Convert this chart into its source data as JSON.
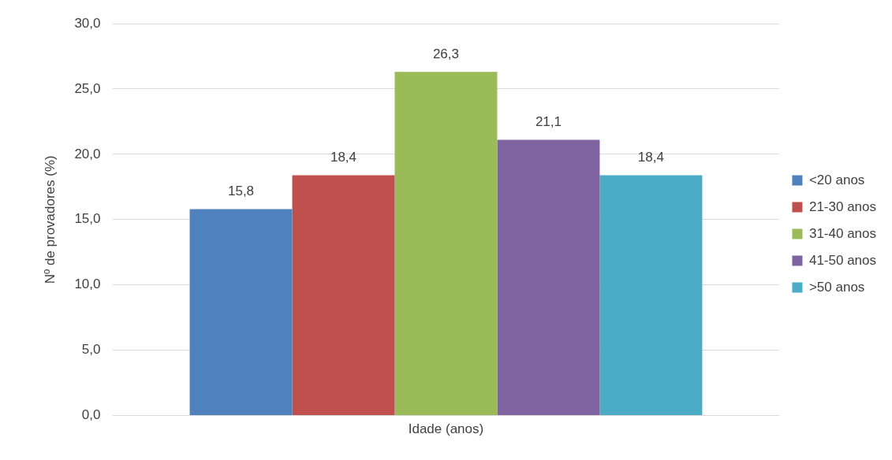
{
  "chart_data": {
    "type": "bar",
    "ylabel": "Nº de provadores (%)",
    "categories": [
      "Idade (anos)"
    ],
    "series": [
      {
        "name": "<20 anos",
        "color": "#4f81bd",
        "values": [
          15.8
        ],
        "value_labels": [
          "15,8"
        ]
      },
      {
        "name": "21-30 anos",
        "color": "#c0504d",
        "values": [
          18.4
        ],
        "value_labels": [
          "18,4"
        ]
      },
      {
        "name": "31-40 anos",
        "color": "#9bbb59",
        "values": [
          26.3
        ],
        "value_labels": [
          "26,3"
        ]
      },
      {
        "name": "41-50 anos",
        "color": "#8064a2",
        "values": [
          21.1
        ],
        "value_labels": [
          "21,1"
        ]
      },
      {
        "name": ">50 anos",
        "color": "#4bacc6",
        "values": [
          18.4
        ],
        "value_labels": [
          "18,4"
        ]
      }
    ],
    "ylim": [
      0,
      30
    ],
    "yticks": [
      {
        "value": 0,
        "label": "0,0"
      },
      {
        "value": 5,
        "label": "5,0"
      },
      {
        "value": 10,
        "label": "10,0"
      },
      {
        "value": 15,
        "label": "15,0"
      },
      {
        "value": 20,
        "label": "20,0"
      },
      {
        "value": 25,
        "label": "25,0"
      },
      {
        "value": 30,
        "label": "30,0"
      }
    ],
    "grid": "y",
    "legend": "right"
  }
}
